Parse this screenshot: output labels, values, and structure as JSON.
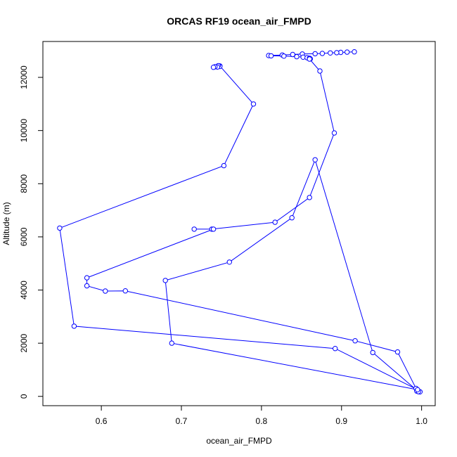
{
  "chart_data": {
    "type": "line",
    "title": "ORCAS RF19 ocean_air_FMPD",
    "xlabel": "ocean_air_FMPD",
    "ylabel": "Altitude (m)",
    "xlim": [
      0.527,
      1.017
    ],
    "ylim": [
      -350,
      13350
    ],
    "xticks": [
      0.6,
      0.7,
      0.8,
      0.9,
      1.0
    ],
    "xtick_labels": [
      "0.6",
      "0.7",
      "0.8",
      "0.9",
      "1.0"
    ],
    "yticks": [
      0,
      2000,
      4000,
      6000,
      8000,
      10000,
      12000
    ],
    "ytick_labels": [
      "0",
      "2000",
      "4000",
      "6000",
      "8000",
      "10000",
      "12000"
    ],
    "grid": false,
    "legend": "none",
    "series_color": "#0000ff",
    "series": [
      {
        "x": [
          0.916,
          0.907,
          0.899,
          0.894,
          0.886,
          0.876,
          0.867,
          0.851,
          0.839,
          0.826,
          0.809,
          0.812,
          0.828,
          0.844,
          0.852,
          0.857,
          0.86,
          0.861,
          0.86,
          0.873,
          0.891,
          0.86,
          0.817,
          0.738,
          0.716,
          0.74,
          0.582,
          0.582,
          0.605,
          0.63,
          0.917,
          0.97,
          0.993,
          0.994,
          0.996,
          0.998,
          0.996,
          0.939,
          0.867,
          0.838,
          0.76,
          0.68,
          0.688,
          0.995,
          0.892,
          0.566,
          0.548,
          0.753,
          0.79,
          0.748,
          0.748,
          0.746,
          0.745,
          0.742,
          0.74
        ],
        "y": [
          12960,
          12950,
          12940,
          12930,
          12920,
          12900,
          12890,
          12880,
          12860,
          12840,
          12820,
          12810,
          12800,
          12780,
          12760,
          12740,
          12720,
          12700,
          12690,
          12240,
          9910,
          7480,
          6550,
          6290,
          6290,
          6290,
          4460,
          4160,
          3960,
          3970,
          2090,
          1670,
          300,
          200,
          180,
          170,
          180,
          1650,
          8900,
          6720,
          5050,
          4360,
          2000,
          250,
          1800,
          2640,
          6330,
          8680,
          11000,
          12430,
          12410,
          12440,
          12390,
          12400,
          12380
        ]
      }
    ]
  }
}
